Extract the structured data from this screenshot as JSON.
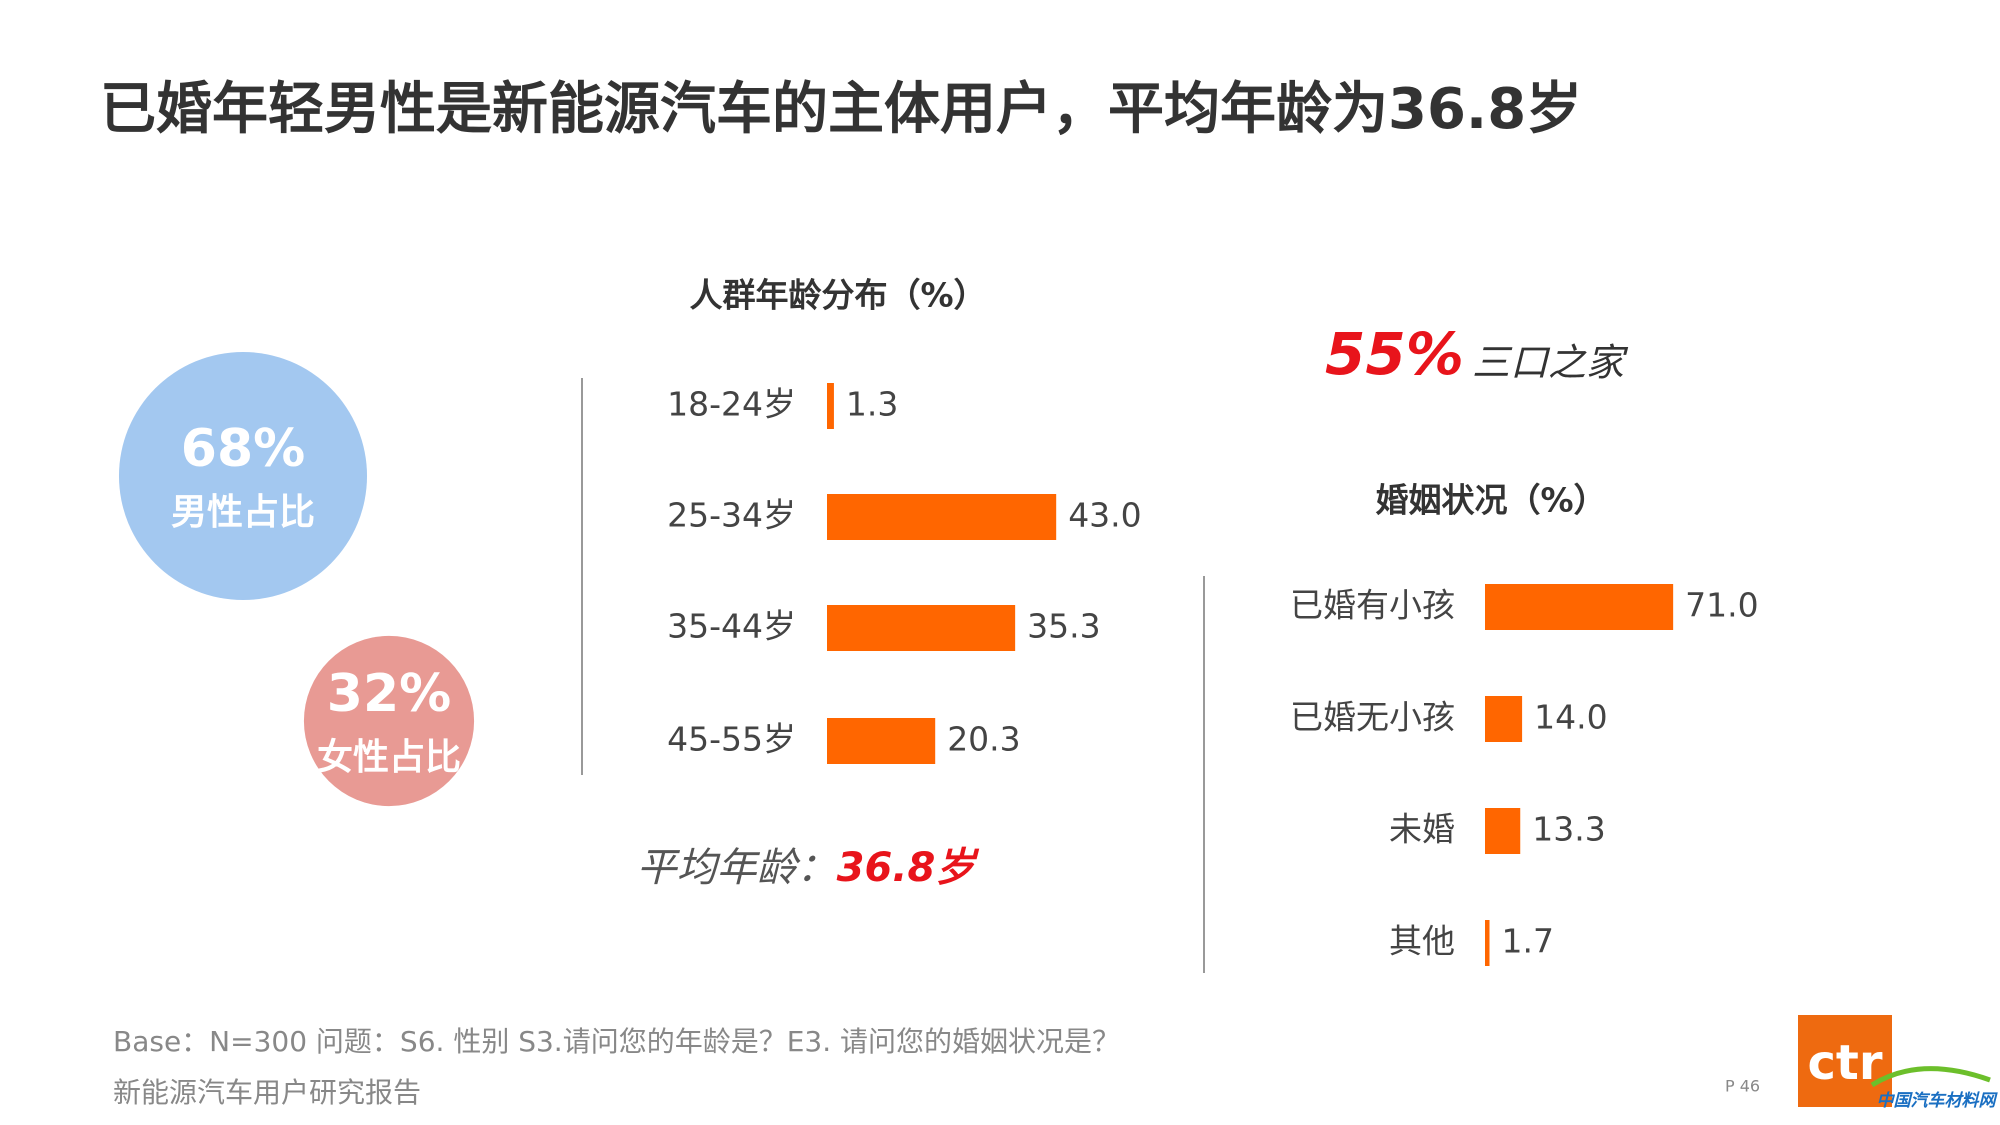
{
  "title": "已婚年轻男性是新能源汽车的主体用户，平均年龄为36.8岁",
  "gender": [
    {
      "name": "男性占比",
      "value": 68,
      "label": "68%",
      "color": "#a3c8f0"
    },
    {
      "name": "女性占比",
      "value": 32,
      "label": "32%",
      "color": "#e89a94"
    }
  ],
  "family": {
    "value": 55,
    "label": "55%",
    "text": "三口之家"
  },
  "average_age": {
    "text": "平均年龄：",
    "value": 36.8,
    "label": "36.8岁"
  },
  "chart_data": [
    {
      "type": "bar",
      "orientation": "horizontal",
      "title": "人群年龄分布（%）",
      "color": "#ff6600",
      "categories": [
        "18-24岁",
        "25-34岁",
        "35-44岁",
        "45-55岁"
      ],
      "values": [
        1.3,
        43.0,
        35.3,
        20.3
      ],
      "value_labels": [
        "1.3",
        "43.0",
        "35.3",
        "20.3"
      ]
    },
    {
      "type": "bar",
      "orientation": "horizontal",
      "title": "婚姻状况（%）",
      "color": "#ff6600",
      "categories": [
        "已婚有小孩",
        "已婚无小孩",
        "未婚",
        "其他"
      ],
      "values": [
        71.0,
        14.0,
        13.3,
        1.7
      ],
      "value_labels": [
        "71.0",
        "14.0",
        "13.3",
        "1.7"
      ]
    }
  ],
  "footer": {
    "note": "Base：N=300   问题：S6. 性别    S3.请问您的年龄是？E3. 请问您的婚姻状况是？",
    "report": "新能源汽车用户研究报告",
    "page": "P 46"
  },
  "logo": {
    "text": "ctr",
    "watermark": "中国汽车材料网"
  }
}
